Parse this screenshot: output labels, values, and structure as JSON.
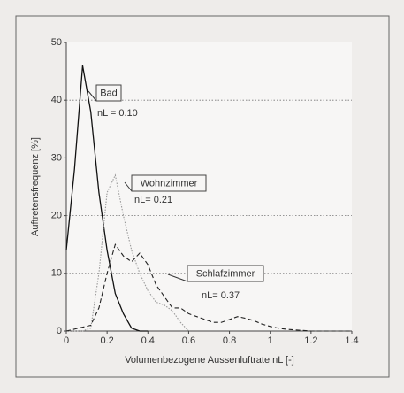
{
  "chart_data": {
    "type": "line",
    "xlabel": "Volumenbezogene Aussenluftrate nL [-]",
    "ylabel": "Auftretensfrequenz [%]",
    "xlim": [
      0,
      1.4
    ],
    "ylim": [
      0,
      50
    ],
    "xticks": [
      0,
      0.2,
      0.4,
      0.6,
      0.8,
      1,
      1.2,
      1.4
    ],
    "yticks": [
      0,
      10,
      20,
      30,
      40,
      50
    ],
    "grid": true,
    "series": [
      {
        "name": "Bad",
        "color": "#111111",
        "style": "solid",
        "x": [
          0,
          0.04,
          0.08,
          0.12,
          0.16,
          0.2,
          0.24,
          0.28,
          0.32,
          0.36,
          0.4
        ],
        "values": [
          14,
          28,
          46,
          38,
          24,
          14,
          6.5,
          3,
          0.5,
          0,
          0
        ]
      },
      {
        "name": "Wohnzimmer",
        "color": "#999999",
        "style": "dotted",
        "x": [
          0,
          0.08,
          0.12,
          0.16,
          0.2,
          0.24,
          0.28,
          0.32,
          0.36,
          0.4,
          0.44,
          0.48,
          0.52,
          0.56,
          0.6
        ],
        "values": [
          0,
          0,
          0.5,
          10,
          24,
          27,
          20,
          14,
          10,
          7,
          5,
          4.5,
          3.5,
          1.5,
          0
        ]
      },
      {
        "name": "Schlafzimmer",
        "color": "#222222",
        "style": "dashed",
        "x": [
          0,
          0.12,
          0.16,
          0.2,
          0.24,
          0.28,
          0.32,
          0.36,
          0.4,
          0.44,
          0.48,
          0.52,
          0.56,
          0.6,
          0.64,
          0.68,
          0.72,
          0.76,
          0.8,
          0.84,
          0.88,
          0.92,
          0.96,
          1.0,
          1.04,
          1.08,
          1.12,
          1.16,
          1.2,
          1.4
        ],
        "values": [
          0,
          1,
          4,
          10,
          15,
          13,
          12,
          13.5,
          11.5,
          8,
          6,
          4,
          4,
          3,
          2.5,
          2,
          1.5,
          1.5,
          2,
          2.5,
          2.2,
          1.8,
          1.2,
          0.8,
          0.5,
          0.3,
          0.2,
          0.1,
          0,
          0
        ]
      }
    ],
    "annotations": [
      {
        "label": "Bad",
        "text": "nL = 0.10"
      },
      {
        "label": "Wohnzimmer",
        "text": "nL= 0.21"
      },
      {
        "label": "Schlafzimmer",
        "text": "nL= 0.37"
      }
    ]
  }
}
